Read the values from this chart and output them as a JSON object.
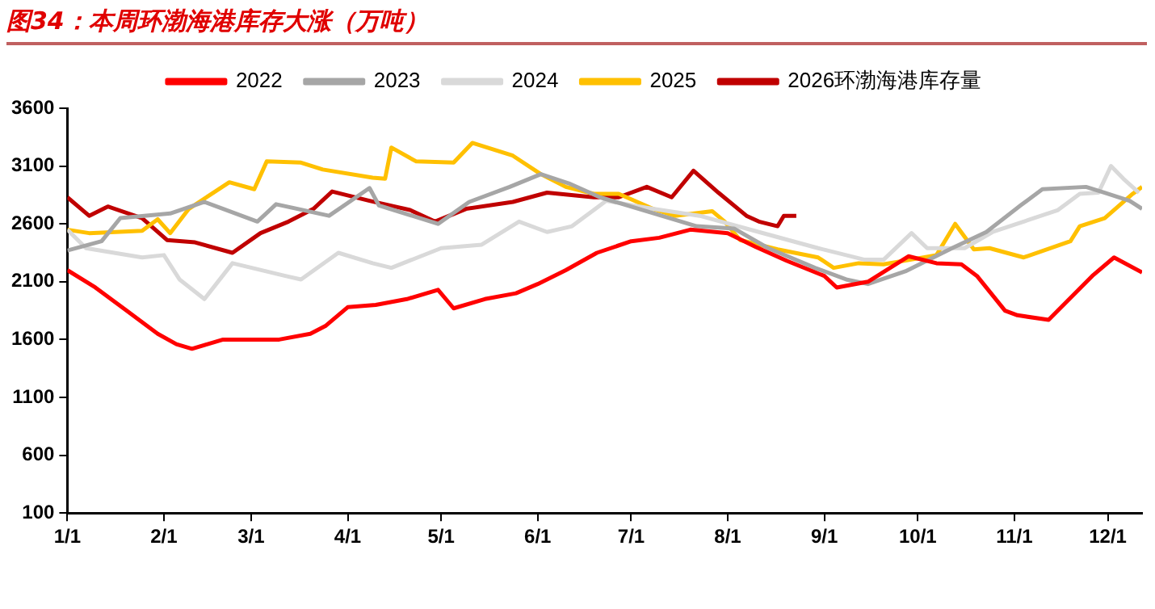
{
  "chart_data": {
    "type": "line",
    "title": "图34：本周环渤海港库存大涨（万吨）",
    "legend": "top",
    "grid": false,
    "marker": "none",
    "line_style": "solid",
    "ylim": [
      100,
      3600
    ],
    "yticks": [
      100,
      600,
      1100,
      1600,
      2100,
      2600,
      3100,
      3600
    ],
    "xlim": [
      "--01-01",
      "--12-12"
    ],
    "xticks": [
      {
        "value": "--01-01",
        "label": "1/1"
      },
      {
        "value": "--02-01",
        "label": "2/1"
      },
      {
        "value": "--03-01",
        "label": "3/1"
      },
      {
        "value": "--04-01",
        "label": "4/1"
      },
      {
        "value": "--05-01",
        "label": "5/1"
      },
      {
        "value": "--06-01",
        "label": "6/1"
      },
      {
        "value": "--07-01",
        "label": "7/1"
      },
      {
        "value": "--08-01",
        "label": "8/1"
      },
      {
        "value": "--09-01",
        "label": "9/1"
      },
      {
        "value": "--10-01",
        "label": "10/1"
      },
      {
        "value": "--11-01",
        "label": "11/1"
      },
      {
        "value": "--12-01",
        "label": "12/1"
      }
    ],
    "series": [
      {
        "name": "2022",
        "color": "#ff0000",
        "x": [
          "--01-01",
          "--01-10",
          "--01-20",
          "--01-30",
          "--02-05",
          "--02-10",
          "--02-15",
          "--02-20",
          "--02-28",
          "--03-10",
          "--03-20",
          "--03-25",
          "--04-01",
          "--04-10",
          "--04-20",
          "--04-30",
          "--05-05",
          "--05-15",
          "--05-25",
          "--06-01",
          "--06-10",
          "--06-20",
          "--07-01",
          "--07-10",
          "--07-20",
          "--08-01",
          "--08-10",
          "--08-20",
          "--09-01",
          "--09-05",
          "--09-15",
          "--09-28",
          "--10-07",
          "--10-15",
          "--10-20",
          "--10-29",
          "--11-02",
          "--11-12",
          "--11-26",
          "--12-03",
          "--12-12"
        ],
        "values": [
          2200,
          2050,
          1850,
          1650,
          1560,
          1520,
          1560,
          1600,
          1600,
          1600,
          1650,
          1720,
          1880,
          1900,
          1950,
          2030,
          1870,
          1950,
          2000,
          2080,
          2200,
          2350,
          2450,
          2480,
          2550,
          2520,
          2400,
          2280,
          2150,
          2050,
          2100,
          2320,
          2260,
          2250,
          2150,
          1850,
          1810,
          1770,
          2150,
          2310,
          2180
        ]
      },
      {
        "name": "2023",
        "color": "#a6a6a6",
        "x": [
          "--01-01",
          "--01-12",
          "--01-18",
          "--02-03",
          "--02-14",
          "--03-03",
          "--03-09",
          "--03-26",
          "--04-08",
          "--04-11",
          "--04-30",
          "--05-10",
          "--05-23",
          "--06-02",
          "--06-11",
          "--06-21",
          "--06-26",
          "--07-22",
          "--08-03",
          "--08-14",
          "--08-29",
          "--09-08",
          "--09-15",
          "--09-27",
          "--10-12",
          "--10-23",
          "--11-03",
          "--11-10",
          "--11-24",
          "--11-30",
          "--12-08",
          "--12-12"
        ],
        "values": [
          2370,
          2450,
          2650,
          2690,
          2790,
          2620,
          2770,
          2670,
          2910,
          2760,
          2600,
          2790,
          2920,
          3030,
          2950,
          2830,
          2790,
          2580,
          2560,
          2390,
          2220,
          2120,
          2080,
          2190,
          2390,
          2530,
          2760,
          2900,
          2920,
          2870,
          2800,
          2730
        ]
      },
      {
        "name": "2024",
        "color": "#d9d9d9",
        "x": [
          "--01-01",
          "--01-07",
          "--01-25",
          "--02-01",
          "--02-06",
          "--02-14",
          "--02-23",
          "--03-12",
          "--03-17",
          "--03-29",
          "--04-09",
          "--04-15",
          "--05-01",
          "--05-14",
          "--05-26",
          "--06-04",
          "--06-12",
          "--06-23",
          "--07-08",
          "--07-23",
          "--08-11",
          "--08-30",
          "--09-14",
          "--09-20",
          "--09-29",
          "--10-04",
          "--10-16",
          "--10-25",
          "--11-04",
          "--11-15",
          "--11-22",
          "--11-28",
          "--12-02",
          "--12-06",
          "--12-11"
        ],
        "values": [
          2550,
          2390,
          2310,
          2330,
          2120,
          1950,
          2260,
          2150,
          2120,
          2350,
          2260,
          2220,
          2390,
          2420,
          2620,
          2530,
          2580,
          2800,
          2730,
          2670,
          2530,
          2390,
          2290,
          2290,
          2520,
          2390,
          2390,
          2530,
          2620,
          2720,
          2860,
          2870,
          3100,
          2990,
          2870
        ]
      },
      {
        "name": "2025",
        "color": "#ffc000",
        "x": [
          "--01-01",
          "--01-08",
          "--01-25",
          "--01-30",
          "--02-03",
          "--02-09",
          "--02-22",
          "--03-02",
          "--03-06",
          "--03-17",
          "--03-24",
          "--04-09",
          "--04-13",
          "--04-15",
          "--04-23",
          "--05-05",
          "--05-11",
          "--05-24",
          "--06-02",
          "--06-10",
          "--06-19",
          "--06-27",
          "--07-08",
          "--07-15",
          "--07-27",
          "--07-31",
          "--08-05",
          "--08-17",
          "--08-30",
          "--09-04",
          "--09-12",
          "--09-20",
          "--10-07",
          "--10-13",
          "--10-19",
          "--10-24",
          "--11-04",
          "--11-19",
          "--11-22",
          "--11-30",
          "--12-09",
          "--12-12"
        ],
        "values": [
          2550,
          2520,
          2540,
          2640,
          2520,
          2730,
          2960,
          2900,
          3140,
          3130,
          3070,
          3000,
          2990,
          3260,
          3140,
          3130,
          3300,
          3190,
          3030,
          2920,
          2860,
          2860,
          2730,
          2670,
          2710,
          2620,
          2460,
          2380,
          2310,
          2220,
          2260,
          2250,
          2330,
          2600,
          2380,
          2390,
          2310,
          2450,
          2580,
          2650,
          2860,
          2920
        ]
      },
      {
        "name": "2026环渤海港库存量",
        "color": "#c00000",
        "x": [
          "--01-01",
          "--01-08",
          "--01-14",
          "--01-25",
          "--02-02",
          "--02-11",
          "--02-23",
          "--03-04",
          "--03-13",
          "--03-21",
          "--03-27",
          "--04-08",
          "--04-21",
          "--04-29",
          "--05-09",
          "--05-24",
          "--06-04",
          "--06-19",
          "--06-27",
          "--07-06",
          "--07-14",
          "--07-21",
          "--07-29",
          "--08-07",
          "--08-11",
          "--08-17",
          "--08-19",
          "--08-23"
        ],
        "values": [
          2830,
          2670,
          2750,
          2650,
          2460,
          2440,
          2350,
          2520,
          2620,
          2730,
          2880,
          2800,
          2720,
          2620,
          2730,
          2790,
          2870,
          2830,
          2830,
          2920,
          2830,
          3060,
          2870,
          2670,
          2620,
          2580,
          2670,
          2670
        ]
      }
    ]
  }
}
